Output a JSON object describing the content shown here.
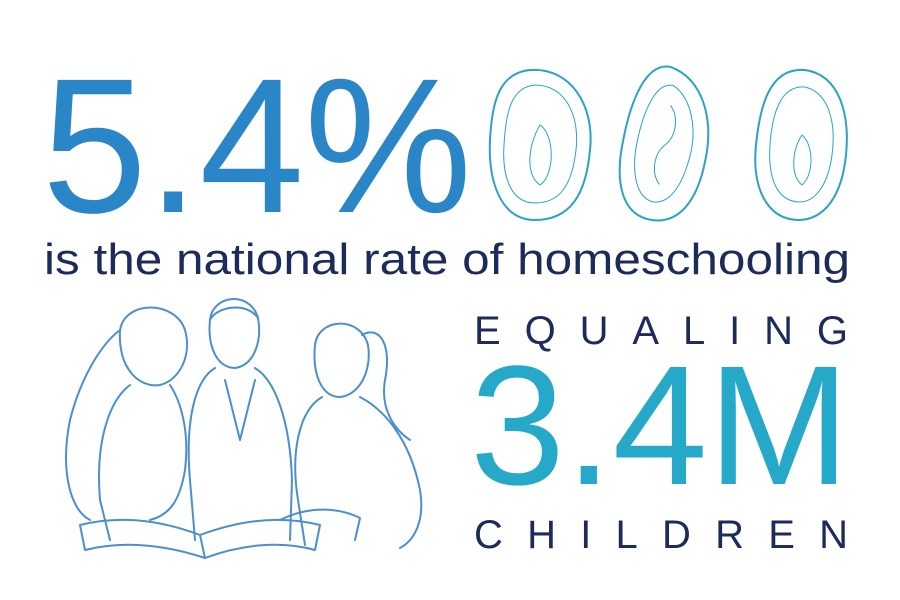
{
  "headline": {
    "stat": "5.4%",
    "caption": "is the national rate of homeschooling"
  },
  "secondary": {
    "prefix": "EQUALING",
    "stat": "3.4M",
    "suffix": "CHILDREN"
  }
}
